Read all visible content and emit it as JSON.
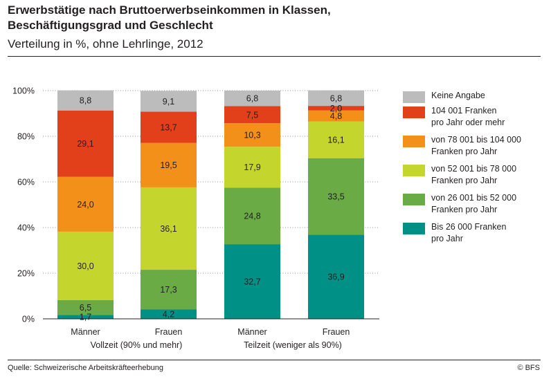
{
  "header": {
    "title_line1": "Erwerbstätige nach Bruttoerwerbseinkommen in Klassen,",
    "title_line2": "Beschäftigungsgrad und Geschlecht",
    "subtitle": "Verteilung in %, ohne Lehrlinge, 2012"
  },
  "footer": {
    "source": "Quelle: Schweizerische Arbeitskräfteerhebung",
    "credit": "© BFS"
  },
  "groups": [
    {
      "label": "Vollzeit (90% und mehr)"
    },
    {
      "label": "Teilzeit (weniger als 90%)"
    }
  ],
  "chart_data": {
    "type": "bar",
    "stacked": true,
    "title": "Erwerbstätige nach Bruttoerwerbseinkommen in Klassen, Beschäftigungsgrad und Geschlecht",
    "subtitle": "Verteilung in %, ohne Lehrlinge, 2012",
    "categories": [
      "Männer",
      "Frauen",
      "Männer",
      "Frauen"
    ],
    "group_labels": [
      "Vollzeit (90% und mehr)",
      "Teilzeit (weniger als 90%)"
    ],
    "ylim": [
      0,
      100
    ],
    "yticks": [
      "0%",
      "20%",
      "40%",
      "60%",
      "80%",
      "100%"
    ],
    "ytick_values": [
      0,
      20,
      40,
      60,
      80,
      100
    ],
    "grid": true,
    "series": [
      {
        "name": "Bis 26 000 Franken pro Jahr",
        "label": "Bis 26 000 Franken\npro Jahr",
        "color": "#009085",
        "values": [
          1.7,
          4.2,
          32.7,
          36.9
        ],
        "value_labels": [
          "1,7",
          "4,2",
          "32,7",
          "36,9"
        ]
      },
      {
        "name": "von 26 001 bis 52 000 Franken pro Jahr",
        "label": "von 26 001 bis 52 000\nFranken pro Jahr",
        "color": "#6aab45",
        "values": [
          6.5,
          17.3,
          24.8,
          33.5
        ],
        "value_labels": [
          "6,5",
          "17,3",
          "24,8",
          "33,5"
        ]
      },
      {
        "name": "von 52 001 bis 78 000 Franken pro Jahr",
        "label": "von 52 001 bis 78 000\nFranken pro Jahr",
        "color": "#c4d52e",
        "values": [
          30.0,
          36.1,
          17.9,
          16.1
        ],
        "value_labels": [
          "30,0",
          "36,1",
          "17,9",
          "16,1"
        ]
      },
      {
        "name": "von 78 001 bis 104 000 Franken pro Jahr",
        "label": "von 78 001 bis 104 000\nFranken pro Jahr",
        "color": "#f39019",
        "values": [
          24.0,
          19.5,
          10.3,
          4.8
        ],
        "value_labels": [
          "24,0",
          "19,5",
          "10,3",
          "4,8"
        ]
      },
      {
        "name": "104 001 Franken pro Jahr oder mehr",
        "label": "104 001 Franken\npro Jahr oder mehr",
        "color": "#e2401b",
        "values": [
          29.1,
          13.7,
          7.5,
          2.0
        ],
        "value_labels": [
          "29,1",
          "13,7",
          "7,5",
          "2,0"
        ]
      },
      {
        "name": "Keine Angabe",
        "label": "Keine Angabe",
        "color": "#bcbcbc",
        "values": [
          8.8,
          9.1,
          6.8,
          6.8
        ],
        "value_labels": [
          "8,8",
          "9,1",
          "6,8",
          "6,8"
        ]
      }
    ],
    "legend_order": [
      5,
      4,
      3,
      2,
      1,
      0
    ],
    "legend_position": "right"
  }
}
